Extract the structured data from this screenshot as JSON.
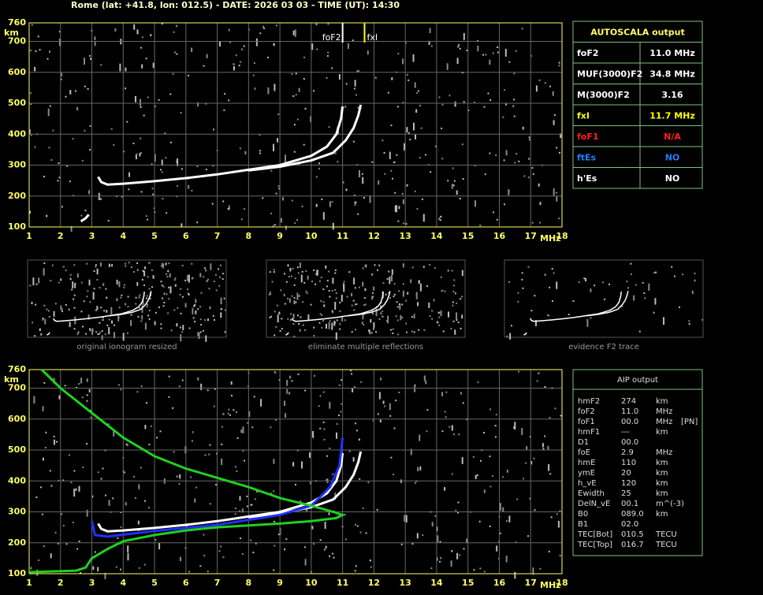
{
  "header": {
    "title": "Rome (lat: +41.8, lon: 012.5) - DATE: 2026 03 03 - TIME (UT): 14:30"
  },
  "ionogram_top": {
    "type": "line",
    "x_label": "MHz",
    "y_label": "km",
    "xlim": [
      1,
      18
    ],
    "ylim": [
      100,
      760
    ],
    "xticks": [
      1,
      2,
      3,
      4,
      5,
      6,
      7,
      8,
      9,
      10,
      11,
      12,
      13,
      14,
      15,
      16,
      17,
      18
    ],
    "yticks": [
      100,
      200,
      300,
      400,
      500,
      600,
      700,
      760
    ],
    "grid": true,
    "markers": [
      {
        "label": "foF2",
        "x": 11.0,
        "color": "#ffffff"
      },
      {
        "label": "fxI",
        "x": 11.7,
        "color": "#ffff00"
      }
    ],
    "series": [
      {
        "color": "#ffffff",
        "x": [
          3.2,
          3.3,
          3.5,
          4,
          5,
          6,
          7,
          8,
          9,
          10,
          10.5,
          10.8,
          10.95,
          11.0
        ],
        "y": [
          262,
          245,
          237,
          240,
          248,
          258,
          270,
          285,
          300,
          330,
          360,
          400,
          450,
          490
        ]
      },
      {
        "color": "#ffffff",
        "x": [
          8,
          9,
          10,
          10.7,
          11.1,
          11.35,
          11.5,
          11.58
        ],
        "y": [
          283,
          295,
          315,
          340,
          380,
          420,
          460,
          495
        ]
      },
      {
        "color": "#ffffff",
        "x": [
          2.65,
          2.8,
          2.9
        ],
        "y": [
          118,
          128,
          140
        ]
      }
    ]
  },
  "autoscala": {
    "title": "AUTOSCALA output",
    "rows": [
      {
        "label": "foF2",
        "value": "11.0 MHz",
        "color": "#ffffff"
      },
      {
        "label": "MUF(3000)F2",
        "value": "34.8 MHz",
        "color": "#ffffff"
      },
      {
        "label": "M(3000)F2",
        "value": "3.16",
        "color": "#ffffff"
      },
      {
        "label": "fxI",
        "value": "11.7 MHz",
        "color": "#ffff00"
      },
      {
        "label": "foF1",
        "value": "N/A",
        "color": "#ff2020"
      },
      {
        "label": "ftEs",
        "value": "NO",
        "color": "#2080ff"
      },
      {
        "label": "h'Es",
        "value": "NO",
        "color": "#ffffff"
      }
    ]
  },
  "thumbnails": {
    "captions": [
      "original ionogram resized",
      "eliminate multiple reflections",
      "evidence F2 trace"
    ]
  },
  "ionogram_bottom": {
    "type": "line",
    "x_label": "MHz",
    "y_label": "km",
    "xlim": [
      1,
      18
    ],
    "ylim": [
      100,
      760
    ],
    "xticks": [
      1,
      2,
      3,
      4,
      5,
      6,
      7,
      8,
      9,
      10,
      11,
      12,
      13,
      14,
      15,
      16,
      17,
      18
    ],
    "yticks": [
      100,
      200,
      300,
      400,
      500,
      600,
      700,
      760
    ],
    "grid": true,
    "series": [
      {
        "color": "#ffffff",
        "x": [
          3.2,
          3.3,
          3.5,
          4,
          5,
          6,
          7,
          8,
          9,
          10,
          10.5,
          10.8,
          10.95,
          11.0
        ],
        "y": [
          262,
          245,
          237,
          240,
          248,
          258,
          270,
          285,
          300,
          330,
          360,
          400,
          450,
          490
        ]
      },
      {
        "color": "#ffffff",
        "x": [
          8,
          9,
          10,
          10.7,
          11.1,
          11.35,
          11.5,
          11.58
        ],
        "y": [
          283,
          295,
          315,
          340,
          380,
          420,
          460,
          495
        ]
      },
      {
        "color": "#2030ff",
        "x": [
          3.0,
          3.1,
          3.5,
          5,
          7,
          9,
          10,
          10.6,
          10.9,
          11.0
        ],
        "y": [
          270,
          225,
          220,
          238,
          258,
          290,
          320,
          380,
          450,
          540
        ]
      },
      {
        "color": "#20d020",
        "x": [
          1,
          2.5,
          2.8,
          3,
          3.5,
          4,
          5,
          6,
          7,
          8,
          9,
          10,
          10.8,
          11,
          10.7,
          10,
          9,
          8,
          7,
          6,
          5,
          4,
          3,
          2,
          1.4
        ],
        "y": [
          105,
          110,
          120,
          150,
          180,
          205,
          225,
          240,
          250,
          256,
          262,
          270,
          280,
          290,
          300,
          320,
          345,
          380,
          410,
          440,
          480,
          540,
          620,
          700,
          760
        ]
      }
    ]
  },
  "aip": {
    "title": "AIP output",
    "rows": [
      [
        "hmF2",
        "274",
        "km"
      ],
      [
        "foF2",
        "11.0",
        "MHz"
      ],
      [
        "foF1",
        "00.0",
        "MHz",
        "[PN]"
      ],
      [
        "hmF1",
        "---",
        "km"
      ],
      [
        "D1",
        "00.0"
      ],
      [
        "foE",
        "2.9",
        "MHz"
      ],
      [
        "hmE",
        "110",
        "km"
      ],
      [
        "ymE",
        "20",
        "km"
      ],
      [
        "h_vE",
        "120",
        "km"
      ],
      [
        "Ewidth",
        "25",
        "km"
      ],
      [
        "DelN_vE",
        "00.1",
        "m^(-3)"
      ],
      [
        "B0",
        "089.0",
        "km"
      ],
      [
        "B1",
        "02.0"
      ],
      [
        "TEC[Bot]",
        "010.5",
        "TECU"
      ],
      [
        "TEC[Top]",
        "016.7",
        "TECU"
      ]
    ]
  }
}
